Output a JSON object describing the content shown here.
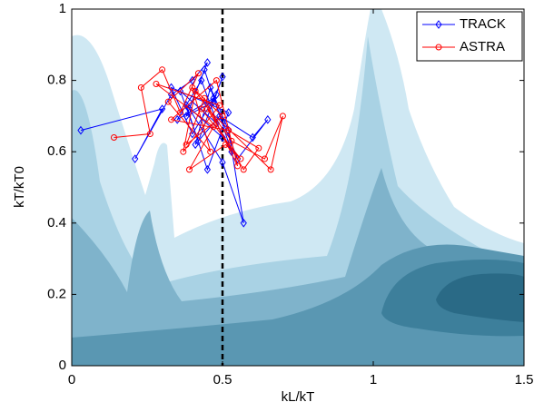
{
  "chart_data": {
    "type": "line",
    "xlabel": "kL/kT",
    "ylabel": "kT/kT0",
    "xlim": [
      0,
      1.5
    ],
    "ylim": [
      0,
      1
    ],
    "xticks": [
      0,
      0.5,
      1,
      1.5
    ],
    "yticks": [
      0,
      0.2,
      0.4,
      0.6,
      0.8,
      1
    ],
    "vline": 0.5,
    "legend": "upper right",
    "series": [
      {
        "name": "TRACK",
        "color": "#0000ff",
        "marker": "diamond",
        "x": [
          0.03,
          0.3,
          0.21,
          0.33,
          0.4,
          0.45,
          0.38,
          0.47,
          0.5,
          0.42,
          0.36,
          0.48,
          0.53,
          0.44,
          0.39,
          0.5,
          0.57,
          0.52,
          0.46,
          0.41,
          0.49,
          0.6,
          0.65,
          0.55,
          0.47,
          0.35,
          0.43,
          0.5,
          0.38,
          0.45,
          0.52,
          0.33,
          0.4,
          0.48
        ],
        "values": [
          0.66,
          0.72,
          0.58,
          0.76,
          0.8,
          0.85,
          0.7,
          0.74,
          0.81,
          0.63,
          0.77,
          0.68,
          0.6,
          0.83,
          0.72,
          0.57,
          0.4,
          0.66,
          0.78,
          0.62,
          0.7,
          0.64,
          0.69,
          0.58,
          0.75,
          0.69,
          0.8,
          0.64,
          0.73,
          0.55,
          0.71,
          0.78,
          0.65,
          0.76
        ]
      },
      {
        "name": "ASTRA",
        "color": "#ff0000",
        "marker": "circle",
        "x": [
          0.14,
          0.26,
          0.23,
          0.3,
          0.36,
          0.42,
          0.32,
          0.46,
          0.4,
          0.5,
          0.38,
          0.44,
          0.55,
          0.48,
          0.33,
          0.52,
          0.62,
          0.57,
          0.45,
          0.66,
          0.7,
          0.64,
          0.53,
          0.41,
          0.37,
          0.49,
          0.28,
          0.47,
          0.39,
          0.51,
          0.56,
          0.43
        ],
        "values": [
          0.64,
          0.65,
          0.78,
          0.83,
          0.71,
          0.82,
          0.74,
          0.6,
          0.78,
          0.7,
          0.62,
          0.75,
          0.56,
          0.8,
          0.69,
          0.66,
          0.61,
          0.55,
          0.72,
          0.55,
          0.7,
          0.58,
          0.63,
          0.77,
          0.6,
          0.73,
          0.79,
          0.67,
          0.55,
          0.62,
          0.58,
          0.72
        ]
      }
    ]
  }
}
